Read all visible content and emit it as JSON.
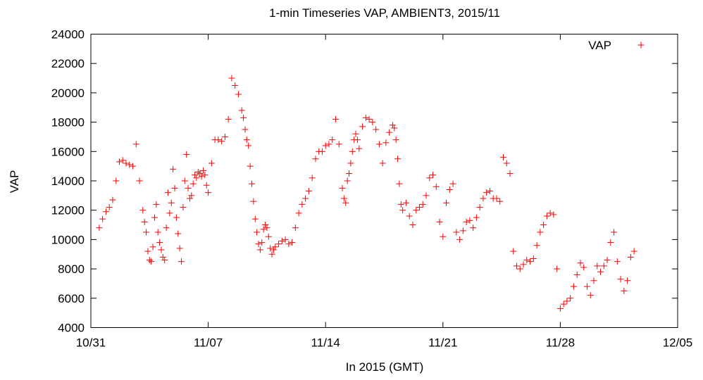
{
  "chart_data": {
    "type": "scatter",
    "title": "1-min Timeseries VAP, AMBIENT3, 2015/11",
    "xlabel": "In 2015 (GMT)",
    "ylabel": "VAP",
    "x_ticks": [
      "10/31",
      "11/07",
      "11/14",
      "11/21",
      "11/28",
      "12/05"
    ],
    "x_range": [
      "2015-10-31",
      "2015-12-05"
    ],
    "y_ticks": [
      "4000",
      "6000",
      "8000",
      "10000",
      "12000",
      "14000",
      "16000",
      "18000",
      "20000",
      "22000",
      "24000"
    ],
    "ylim": [
      4000,
      24000
    ],
    "grid": false,
    "legend": {
      "position": "top-right",
      "entries": [
        "VAP"
      ]
    },
    "marker": "+",
    "color": "#ff0000",
    "series": [
      {
        "name": "VAP",
        "x_unit": "days since 2015-10-31 00:00 GMT",
        "x": [
          0.5,
          0.7,
          0.9,
          1.1,
          1.3,
          1.5,
          1.7,
          1.9,
          2.1,
          2.3,
          2.5,
          2.7,
          2.9,
          3.1,
          3.2,
          3.3,
          3.4,
          3.5,
          3.6,
          3.7,
          3.8,
          3.9,
          4.0,
          4.1,
          4.2,
          4.3,
          4.4,
          4.5,
          4.6,
          4.7,
          4.8,
          4.9,
          5.0,
          5.1,
          5.2,
          5.3,
          5.4,
          5.5,
          5.6,
          5.7,
          5.8,
          5.9,
          6.0,
          6.1,
          6.2,
          6.3,
          6.4,
          6.5,
          6.6,
          6.7,
          6.8,
          6.9,
          7.0,
          7.2,
          7.4,
          7.6,
          7.8,
          8.0,
          8.2,
          8.4,
          8.6,
          8.8,
          9.0,
          9.1,
          9.2,
          9.3,
          9.4,
          9.5,
          9.6,
          9.7,
          9.8,
          9.9,
          10.0,
          10.1,
          10.2,
          10.3,
          10.4,
          10.5,
          10.6,
          10.7,
          10.8,
          10.9,
          11.0,
          11.2,
          11.4,
          11.6,
          11.8,
          12.0,
          12.2,
          12.4,
          12.6,
          12.8,
          13.0,
          13.2,
          13.4,
          13.6,
          13.8,
          14.0,
          14.2,
          14.4,
          14.6,
          14.8,
          15.0,
          15.1,
          15.2,
          15.3,
          15.4,
          15.5,
          15.6,
          15.7,
          15.8,
          15.9,
          16.0,
          16.2,
          16.4,
          16.6,
          16.8,
          17.0,
          17.2,
          17.4,
          17.6,
          17.8,
          18.0,
          18.1,
          18.2,
          18.3,
          18.4,
          18.5,
          18.6,
          18.8,
          19.0,
          19.2,
          19.4,
          19.6,
          19.8,
          20.0,
          20.2,
          20.4,
          20.6,
          20.8,
          21.0,
          21.2,
          21.4,
          21.6,
          21.8,
          22.0,
          22.2,
          22.4,
          22.6,
          22.8,
          23.0,
          23.2,
          23.4,
          23.6,
          23.8,
          24.0,
          24.2,
          24.4,
          24.6,
          24.8,
          25.0,
          25.2,
          25.4,
          25.6,
          25.8,
          26.0,
          26.2,
          26.4,
          26.6,
          26.8,
          27.0,
          27.2,
          27.4,
          27.6,
          27.8,
          28.0,
          28.2,
          28.4,
          28.6,
          28.8,
          29.0,
          29.2,
          29.4,
          29.6,
          29.8,
          30.0,
          30.2,
          30.4,
          30.6,
          30.8,
          31.0,
          31.2,
          31.4,
          31.6,
          31.8,
          32.0,
          32.2,
          32.4
        ],
        "y": [
          10800,
          11400,
          11900,
          12200,
          12700,
          14000,
          15300,
          15400,
          15200,
          15100,
          15000,
          16500,
          14000,
          12000,
          11200,
          10500,
          9200,
          8600,
          8500,
          9500,
          11500,
          12400,
          10500,
          9800,
          9300,
          8800,
          8600,
          10800,
          13200,
          11800,
          12500,
          14800,
          13500,
          11500,
          10400,
          9400,
          8500,
          12200,
          14000,
          15800,
          13500,
          12800,
          13000,
          13800,
          14400,
          14200,
          14600,
          14500,
          14300,
          14700,
          14400,
          13700,
          13200,
          15200,
          16800,
          16800,
          16700,
          17000,
          18200,
          21000,
          20500,
          19900,
          18800,
          18300,
          17500,
          16800,
          16400,
          15000,
          13800,
          12600,
          11400,
          10500,
          9700,
          9300,
          9800,
          10700,
          11000,
          10800,
          10200,
          9400,
          9000,
          9300,
          9500,
          9700,
          9900,
          10000,
          9700,
          9800,
          10800,
          11800,
          12400,
          12800,
          13300,
          14200,
          15500,
          16000,
          16000,
          16400,
          16500,
          16800,
          18200,
          16500,
          13500,
          12800,
          12500,
          14000,
          14500,
          15200,
          16000,
          16800,
          17200,
          16800,
          16200,
          17700,
          18300,
          18200,
          18000,
          17500,
          16500,
          15200,
          16600,
          17300,
          17800,
          17600,
          16800,
          15500,
          13800,
          12400,
          12000,
          12500,
          11600,
          11000,
          12000,
          12200,
          12400,
          13000,
          14200,
          14400,
          13600,
          11200,
          10200,
          12500,
          13400,
          13800,
          10500,
          10000,
          10600,
          11200,
          11300,
          10800,
          11500,
          12200,
          12800,
          13200,
          13300,
          12800,
          12800,
          12600,
          15600,
          15200,
          14500,
          9200,
          8200,
          8000,
          8300,
          8600,
          8500,
          8700,
          9600,
          10500,
          11000,
          11600,
          11800,
          11700,
          8000,
          5300,
          5600,
          5800,
          6000,
          6800,
          7600,
          8400,
          8100,
          6800,
          6200,
          7200,
          8200,
          7800,
          8200,
          8600,
          9800,
          10500,
          8500,
          7300,
          6500,
          7200,
          8800,
          9200
        ]
      }
    ]
  }
}
